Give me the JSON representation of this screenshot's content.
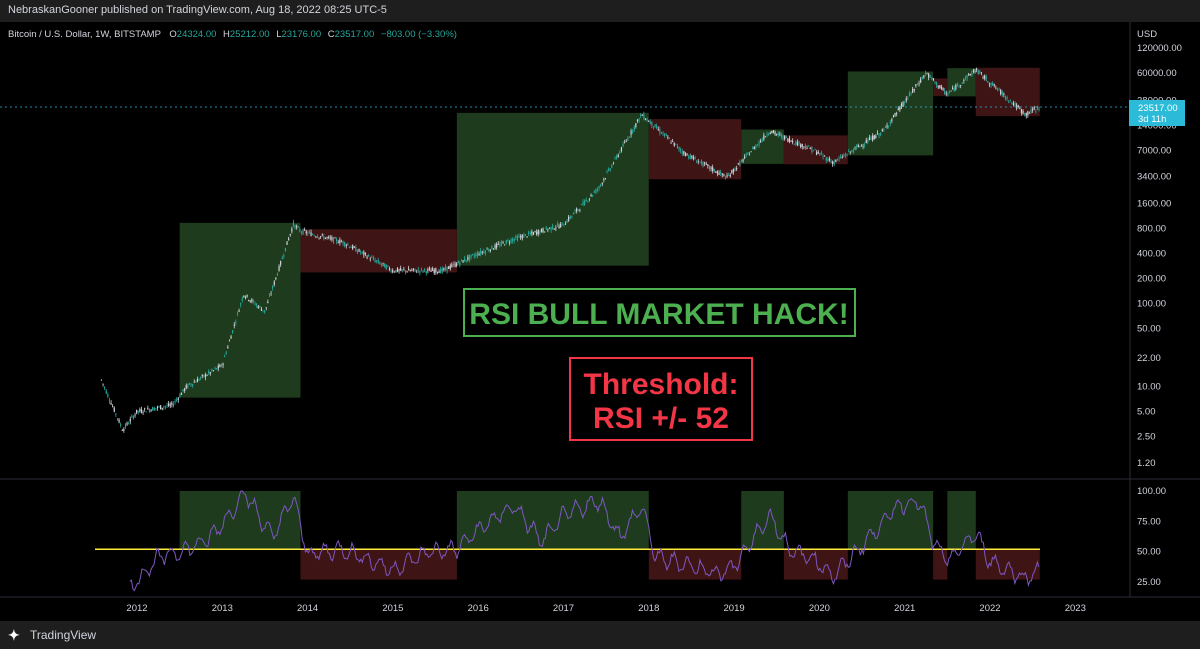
{
  "header": {
    "publisher_line": "NebraskanGooner published on TradingView.com, Aug 18, 2022 08:25 UTC-5"
  },
  "legend": {
    "symbol": "Bitcoin / U.S. Dollar, 1W, BITSTAMP",
    "o_label": "O",
    "o_value": "24324.00",
    "h_label": "H",
    "h_value": "25212.00",
    "l_label": "L",
    "l_value": "23176.00",
    "c_label": "C",
    "c_value": "23517.00",
    "change": "−803.00 (−3.30%)"
  },
  "price_axis": {
    "currency": "USD",
    "ticks": [
      "120000.00",
      "60000.00",
      "28000.00",
      "14000.00",
      "7000.00",
      "3400.00",
      "1600.00",
      "800.00",
      "400.00",
      "200.00",
      "100.00",
      "50.00",
      "22.00",
      "10.00",
      "5.00",
      "2.50",
      "1.20"
    ],
    "last_price": "23517.00",
    "countdown": "3d 11h"
  },
  "rsi_axis": {
    "ticks": [
      "100.00",
      "75.00",
      "50.00",
      "25.00"
    ]
  },
  "time_axis": {
    "ticks": [
      "2012",
      "2013",
      "2014",
      "2015",
      "2016",
      "2017",
      "2018",
      "2019",
      "2020",
      "2021",
      "2022",
      "2023"
    ]
  },
  "annotations": {
    "hack_title": "RSI BULL MARKET HACK!",
    "threshold_line1": "Threshold:",
    "threshold_line2": "RSI +/- 52"
  },
  "footer": {
    "brand": "TradingView"
  },
  "colors": {
    "bull": "#1e3b1d",
    "bear": "#3e1414",
    "candle": "#d1d4dc",
    "candle_down": "#26a69a",
    "rsi": "#7e57c2",
    "threshold": "#ffeb3b",
    "accent_green": "#4caf50",
    "accent_red": "#f23645",
    "last_price_tag": "#2bbbd8"
  },
  "chart_data": {
    "type": "line",
    "series": [
      {
        "x": [
          "2011-08",
          "2011-11",
          "2012-01",
          "2012-06",
          "2012-08",
          "2013-01",
          "2013-04",
          "2013-07",
          "2013-11",
          "2013-12",
          "2014-06",
          "2015-01",
          "2015-08",
          "2016-01",
          "2016-06",
          "2017-01",
          "2017-06",
          "2017-12",
          "2018-06",
          "2018-12",
          "2019-06",
          "2019-12",
          "2020-03",
          "2020-10",
          "2021-04",
          "2021-07",
          "2021-11",
          "2022-06",
          "2022-08"
        ],
        "y": [
          12,
          3,
          5,
          6,
          10,
          18,
          130,
          80,
          900,
          750,
          550,
          250,
          250,
          400,
          600,
          900,
          2500,
          19000,
          6500,
          3300,
          12000,
          7200,
          5000,
          12000,
          60000,
          33000,
          66000,
          19000,
          23517
        ]
      },
      {
        "x": [
          "2011-12",
          "2012-04",
          "2012-08",
          "2012-11",
          "2013-02",
          "2013-04",
          "2013-08",
          "2013-11",
          "2014-01",
          "2014-06",
          "2015-01",
          "2015-06",
          "2015-10",
          "2016-01",
          "2016-06",
          "2016-10",
          "2017-01",
          "2017-06",
          "2017-09",
          "2017-12",
          "2018-02",
          "2018-06",
          "2018-11",
          "2019-01",
          "2019-06",
          "2019-09",
          "2019-12",
          "2020-03",
          "2020-07",
          "2020-12",
          "2021-03",
          "2021-05",
          "2021-07",
          "2021-11",
          "2022-01",
          "2022-06",
          "2022-08"
        ],
        "y": [
          20,
          45,
          52,
          60,
          80,
          100,
          62,
          95,
          48,
          52,
          35,
          50,
          52,
          68,
          88,
          58,
          80,
          92,
          62,
          88,
          45,
          40,
          32,
          38,
          80,
          50,
          45,
          30,
          55,
          88,
          92,
          58,
          42,
          65,
          42,
          28,
          36
        ]
      }
    ],
    "threshold": 52,
    "bull_periods": [
      [
        "2012-07",
        "2013-12"
      ],
      [
        "2015-10",
        "2018-01"
      ],
      [
        "2019-02",
        "2019-08"
      ],
      [
        "2020-05",
        "2021-05"
      ],
      [
        "2021-07",
        "2021-11"
      ]
    ],
    "bear_periods": [
      [
        "2013-12",
        "2015-10"
      ],
      [
        "2018-01",
        "2019-02"
      ],
      [
        "2019-08",
        "2020-05"
      ],
      [
        "2021-05",
        "2021-07"
      ],
      [
        "2021-11",
        "2022-08"
      ]
    ]
  }
}
